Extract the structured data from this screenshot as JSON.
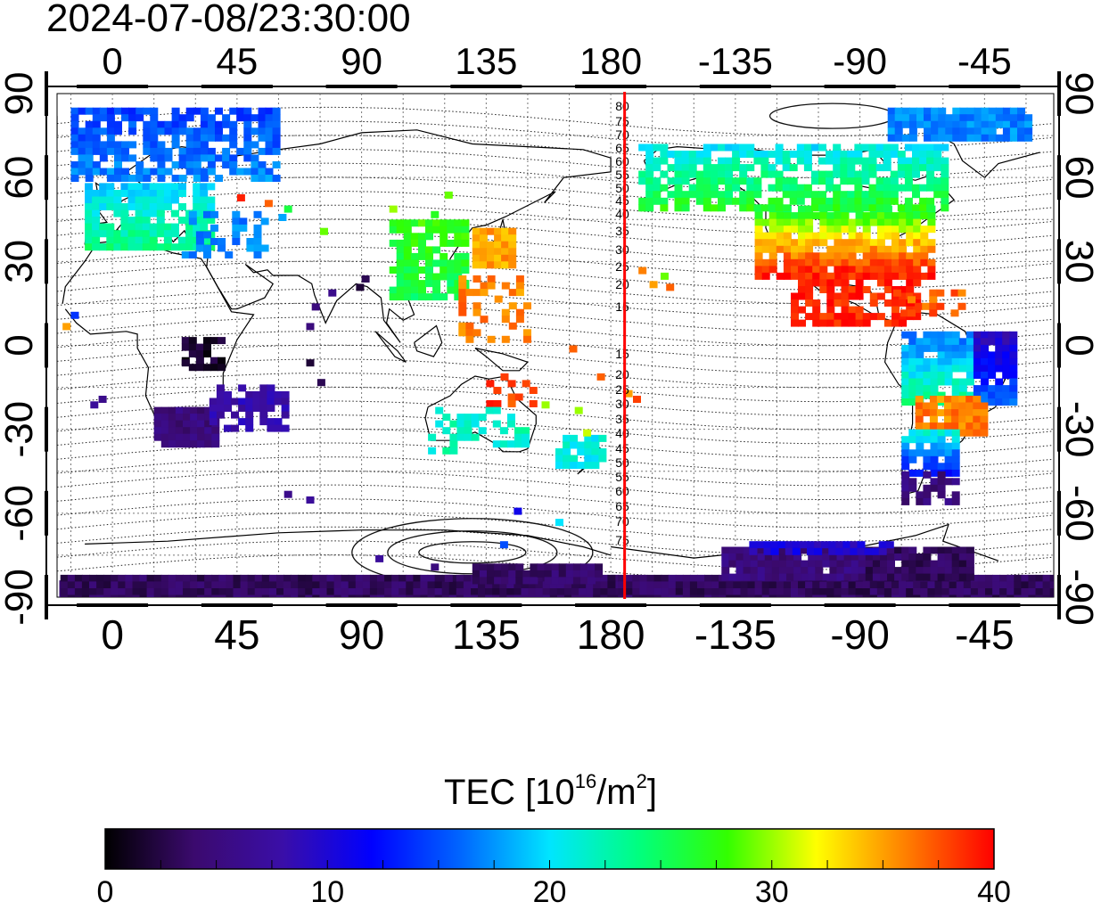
{
  "timestamp": "2024-07-08/23:30:00",
  "map": {
    "top_lon_labels": [
      "0",
      "45",
      "90",
      "135",
      "180",
      "-135",
      "-90",
      "-45"
    ],
    "bottom_lon_labels": [
      "0",
      "45",
      "90",
      "135",
      "180",
      "-135",
      "-90",
      "-45"
    ],
    "left_lat_labels": [
      "90",
      "60",
      "30",
      "0",
      "-30",
      "-60",
      "-90"
    ],
    "right_lat_labels": [
      "90",
      "60",
      "30",
      "0",
      "-30",
      "-60",
      "-90"
    ],
    "contour_labels_north": [
      "80",
      "75",
      "70",
      "65",
      "60",
      "55",
      "50",
      "45",
      "40",
      "35",
      "30",
      "25",
      "20",
      "15"
    ],
    "contour_labels_south": [
      "15",
      "20",
      "25",
      "30",
      "35",
      "40",
      "45",
      "50",
      "55",
      "60",
      "65",
      "70",
      "75"
    ],
    "terminator_color": "#ff0000",
    "terminator_lon": -175
  },
  "colorbar": {
    "title_prefix": "TEC  [10",
    "title_exp": "16",
    "title_mid": "/m",
    "title_exp2": "2",
    "title_suffix": "]",
    "ticks": [
      "0",
      "10",
      "20",
      "30",
      "40"
    ],
    "min": 0,
    "max": 40,
    "colors": [
      "#000000",
      "#3b0a6e",
      "#3a0ea8",
      "#0000ff",
      "#0066ff",
      "#00e5ff",
      "#00ff7f",
      "#33ff00",
      "#ffff00",
      "#ff8000",
      "#ff0000"
    ]
  }
}
